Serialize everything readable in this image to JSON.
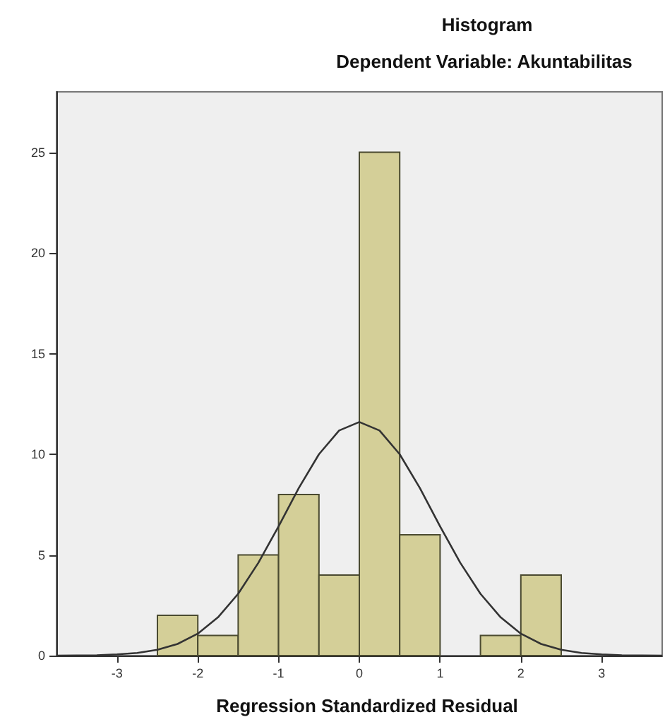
{
  "chart_data": {
    "type": "histogram",
    "title": "Histogram",
    "subtitle": "Dependent Variable: Akuntabilitas",
    "xlabel": "Regression Standardized Residual",
    "series": [
      {
        "bins": [
          -2.5,
          -2,
          -1.5,
          -1,
          -0.5,
          0,
          0.5,
          1,
          1.5,
          2,
          2.5
        ],
        "values": [
          2,
          1,
          5,
          8,
          4,
          25,
          6,
          0,
          1,
          4
        ],
        "color": "#d4cf98"
      },
      {
        "type": "line",
        "x": [
          -3.75,
          -3.5,
          -3.25,
          -3,
          -2.75,
          -2.5,
          -2.25,
          -2,
          -1.75,
          -1.5,
          -1.25,
          -1,
          -0.75,
          -0.5,
          -0.25,
          0,
          0.25,
          0.5,
          0.75,
          1,
          1.25,
          1.5,
          1.75,
          2,
          2.25,
          2.5,
          2.75,
          3,
          3.25,
          3.5,
          3.75
        ],
        "values": [
          0,
          0.01,
          0.02,
          0.06,
          0.13,
          0.29,
          0.58,
          1.09,
          1.9,
          3.07,
          4.61,
          6.42,
          8.32,
          10,
          11.18,
          11.6,
          11.18,
          10,
          8.32,
          6.42,
          4.61,
          3.07,
          1.9,
          1.09,
          0.58,
          0.29,
          0.13,
          0.06,
          0.02,
          0.01,
          0
        ],
        "color": "#333333"
      }
    ],
    "xlim": [
      -3.75,
      3.75
    ],
    "ylim": [
      0,
      28
    ],
    "xticks": [
      -3,
      -2,
      -1,
      0,
      1,
      2,
      3
    ],
    "yticks": [
      0,
      5,
      10,
      15,
      20,
      25
    ],
    "grid": false,
    "marker": "none",
    "line_style": "solid"
  }
}
